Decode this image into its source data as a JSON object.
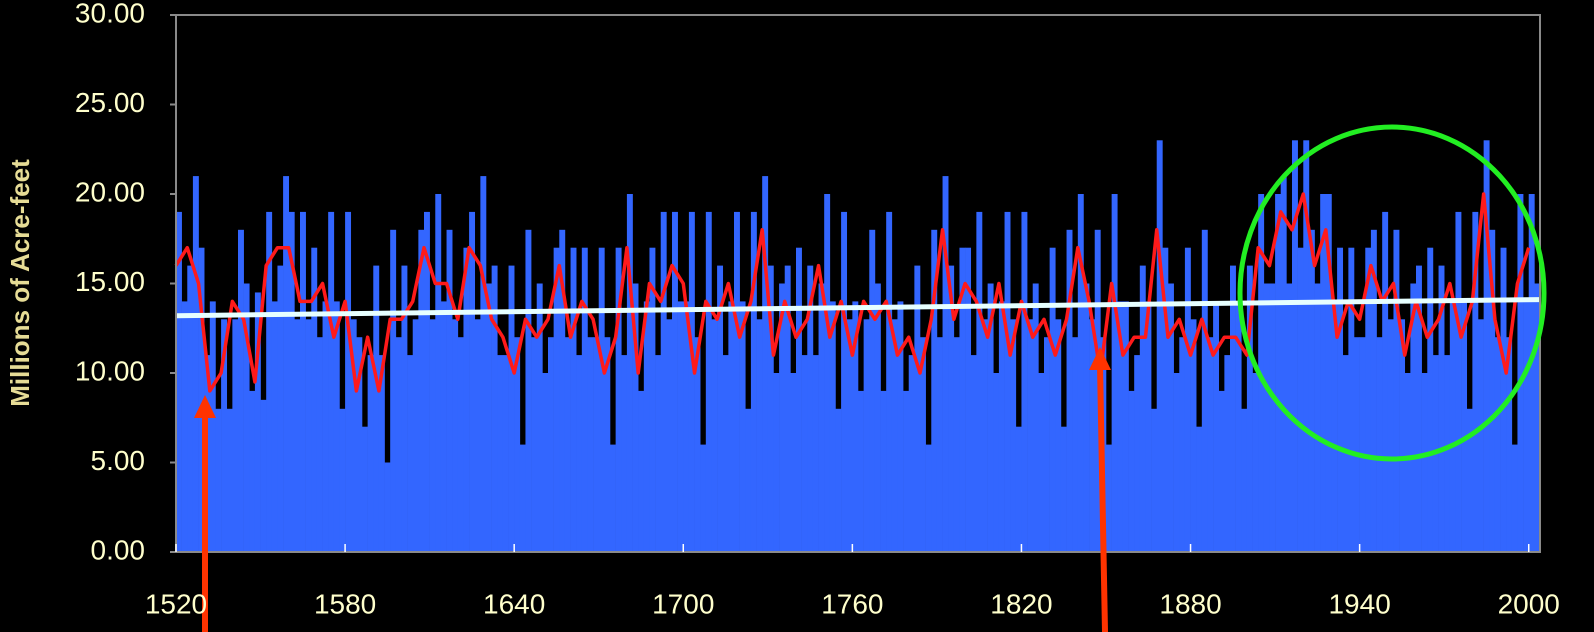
{
  "chart_data": {
    "type": "bar",
    "y_label": "Millions of Acre-feet",
    "xlim": [
      1520,
      2004
    ],
    "ylim": [
      0,
      30
    ],
    "xticks": [
      1520,
      1580,
      1640,
      1700,
      1760,
      1820,
      1880,
      1940,
      2000
    ],
    "yticks": [
      {
        "value": 0,
        "label": "0.00"
      },
      {
        "value": 5,
        "label": "5.00"
      },
      {
        "value": 10,
        "label": "10.00"
      },
      {
        "value": 15,
        "label": "15.00"
      },
      {
        "value": 20,
        "label": "20.00"
      },
      {
        "value": 25,
        "label": "25.00"
      },
      {
        "value": 30,
        "label": "30.00"
      }
    ],
    "series": [
      {
        "type": "bar",
        "color": "#3366ff",
        "x": [
          1520,
          1522,
          1524,
          1526,
          1528,
          1530,
          1532,
          1534,
          1536,
          1538,
          1540,
          1542,
          1544,
          1546,
          1548,
          1550,
          1552,
          1554,
          1556,
          1558,
          1560,
          1562,
          1564,
          1566,
          1568,
          1570,
          1572,
          1574,
          1576,
          1578,
          1580,
          1582,
          1584,
          1586,
          1588,
          1590,
          1592,
          1594,
          1596,
          1598,
          1600,
          1602,
          1604,
          1606,
          1608,
          1610,
          1612,
          1614,
          1616,
          1618,
          1620,
          1622,
          1624,
          1626,
          1628,
          1630,
          1632,
          1634,
          1636,
          1638,
          1640,
          1642,
          1644,
          1646,
          1648,
          1650,
          1652,
          1654,
          1656,
          1658,
          1660,
          1662,
          1664,
          1666,
          1668,
          1670,
          1672,
          1674,
          1676,
          1678,
          1680,
          1682,
          1684,
          1686,
          1688,
          1690,
          1692,
          1694,
          1696,
          1698,
          1700,
          1702,
          1704,
          1706,
          1708,
          1710,
          1712,
          1714,
          1716,
          1718,
          1720,
          1722,
          1724,
          1726,
          1728,
          1730,
          1732,
          1734,
          1736,
          1738,
          1740,
          1742,
          1744,
          1746,
          1748,
          1750,
          1752,
          1754,
          1756,
          1758,
          1760,
          1762,
          1764,
          1766,
          1768,
          1770,
          1772,
          1774,
          1776,
          1778,
          1780,
          1782,
          1784,
          1786,
          1788,
          1790,
          1792,
          1794,
          1796,
          1798,
          1800,
          1802,
          1804,
          1806,
          1808,
          1810,
          1812,
          1814,
          1816,
          1818,
          1820,
          1822,
          1824,
          1826,
          1828,
          1830,
          1832,
          1834,
          1836,
          1838,
          1840,
          1842,
          1844,
          1846,
          1848,
          1850,
          1852,
          1854,
          1856,
          1858,
          1860,
          1862,
          1864,
          1866,
          1868,
          1870,
          1872,
          1874,
          1876,
          1878,
          1880,
          1882,
          1884,
          1886,
          1888,
          1890,
          1892,
          1894,
          1896,
          1898,
          1900,
          1902,
          1904,
          1906,
          1908,
          1910,
          1912,
          1914,
          1916,
          1918,
          1920,
          1922,
          1924,
          1926,
          1928,
          1930,
          1932,
          1934,
          1936,
          1938,
          1940,
          1942,
          1944,
          1946,
          1948,
          1950,
          1952,
          1954,
          1956,
          1958,
          1960,
          1962,
          1964,
          1966,
          1968,
          1970,
          1972,
          1974,
          1976,
          1978,
          1980,
          1982,
          1984,
          1986,
          1988,
          1990,
          1992,
          1994,
          1996,
          1998,
          2000,
          2002
        ],
        "values": [
          19,
          14,
          16,
          21,
          17,
          11,
          14,
          8,
          13,
          8,
          13,
          18,
          15,
          9,
          14.5,
          8.5,
          19,
          14,
          16,
          21,
          19,
          13,
          19,
          13,
          17,
          12,
          14,
          19,
          14,
          8,
          19,
          13,
          12,
          7,
          11,
          16,
          11,
          5,
          18,
          12,
          16,
          11,
          13,
          18,
          19,
          13,
          20,
          14,
          18,
          13,
          12,
          17,
          19,
          13,
          21,
          15,
          16,
          11,
          11,
          16,
          12,
          6,
          18,
          12,
          15,
          10,
          12,
          17,
          18,
          12,
          17,
          11,
          17,
          12,
          12,
          17,
          12,
          6,
          17,
          11,
          20,
          15,
          9,
          14,
          17,
          11,
          19,
          13,
          19,
          14,
          14,
          19,
          12,
          6,
          19,
          13,
          16,
          11,
          14,
          19,
          14,
          8,
          19,
          13,
          21,
          16,
          10,
          15,
          16,
          10,
          17,
          11,
          16,
          11,
          15,
          20,
          14,
          8,
          19,
          13,
          14,
          9,
          13,
          18,
          15,
          9,
          19,
          13,
          14,
          9,
          11,
          16,
          12,
          6,
          18,
          12,
          21,
          16,
          12,
          17,
          17,
          11,
          19,
          13,
          15,
          10,
          14,
          19,
          13,
          7,
          19,
          13,
          15,
          10,
          12,
          17,
          13,
          7,
          18,
          12,
          20,
          15,
          13,
          18,
          12,
          6,
          20,
          14,
          14,
          9,
          11,
          16,
          14,
          8,
          23,
          17,
          15,
          10,
          12,
          17,
          13,
          7,
          18,
          12,
          14,
          9,
          11,
          16,
          14,
          8,
          16,
          10,
          20,
          15,
          15,
          20,
          21,
          15,
          23,
          17,
          23,
          18,
          15,
          20,
          20,
          14,
          17,
          11,
          17,
          12,
          12,
          17,
          18,
          12,
          19,
          13,
          18,
          13,
          10,
          15,
          16,
          10,
          17,
          11,
          16,
          11,
          14,
          19,
          14,
          8,
          19,
          13,
          23,
          18,
          12,
          17,
          12,
          6,
          20,
          14,
          20,
          15
        ]
      },
      {
        "type": "line",
        "color": "#ff1a1a",
        "x": [
          1520,
          1524,
          1528,
          1532,
          1536,
          1540,
          1544,
          1548,
          1552,
          1556,
          1560,
          1564,
          1568,
          1572,
          1576,
          1580,
          1584,
          1588,
          1592,
          1596,
          1600,
          1604,
          1608,
          1612,
          1616,
          1620,
          1624,
          1628,
          1632,
          1636,
          1640,
          1644,
          1648,
          1652,
          1656,
          1660,
          1664,
          1668,
          1672,
          1676,
          1680,
          1684,
          1688,
          1692,
          1696,
          1700,
          1704,
          1708,
          1712,
          1716,
          1720,
          1724,
          1728,
          1732,
          1736,
          1740,
          1744,
          1748,
          1752,
          1756,
          1760,
          1764,
          1768,
          1772,
          1776,
          1780,
          1784,
          1788,
          1792,
          1796,
          1800,
          1804,
          1808,
          1812,
          1816,
          1820,
          1824,
          1828,
          1832,
          1836,
          1840,
          1844,
          1848,
          1852,
          1856,
          1860,
          1864,
          1868,
          1872,
          1876,
          1880,
          1884,
          1888,
          1892,
          1896,
          1900,
          1904,
          1908,
          1912,
          1916,
          1920,
          1924,
          1928,
          1932,
          1936,
          1940,
          1944,
          1948,
          1952,
          1956,
          1960,
          1964,
          1968,
          1972,
          1976,
          1980,
          1984,
          1988,
          1992,
          1996,
          2000
        ],
        "values": [
          16,
          17,
          15,
          9,
          10,
          14,
          13,
          9.5,
          16,
          17,
          17,
          14,
          14,
          15,
          12,
          14,
          9,
          12,
          9,
          13,
          13,
          14,
          17,
          15,
          15,
          13,
          17,
          16,
          13,
          12,
          10,
          13,
          12,
          13,
          16,
          12,
          14,
          13,
          10,
          12,
          17,
          10,
          15,
          14,
          16,
          15,
          10,
          14,
          13,
          15,
          12,
          14,
          18,
          11,
          14,
          12,
          13,
          16,
          12,
          14,
          11,
          14,
          13,
          14,
          11,
          12,
          10,
          13,
          18,
          13,
          15,
          14,
          12,
          15,
          11,
          14,
          12,
          13,
          11,
          13,
          17,
          14,
          10,
          15,
          11,
          12,
          12,
          18,
          12,
          13,
          11,
          13,
          11,
          12,
          12,
          11,
          17,
          16,
          19,
          18,
          20,
          16,
          18,
          12,
          14,
          13,
          16,
          14,
          15,
          11,
          14,
          12,
          13,
          15,
          12,
          14,
          20,
          13,
          10,
          15,
          17
        ]
      },
      {
        "type": "line",
        "color": "#e6ffff",
        "x": [
          1520,
          2004
        ],
        "values": [
          13.2,
          14.1
        ]
      }
    ]
  }
}
